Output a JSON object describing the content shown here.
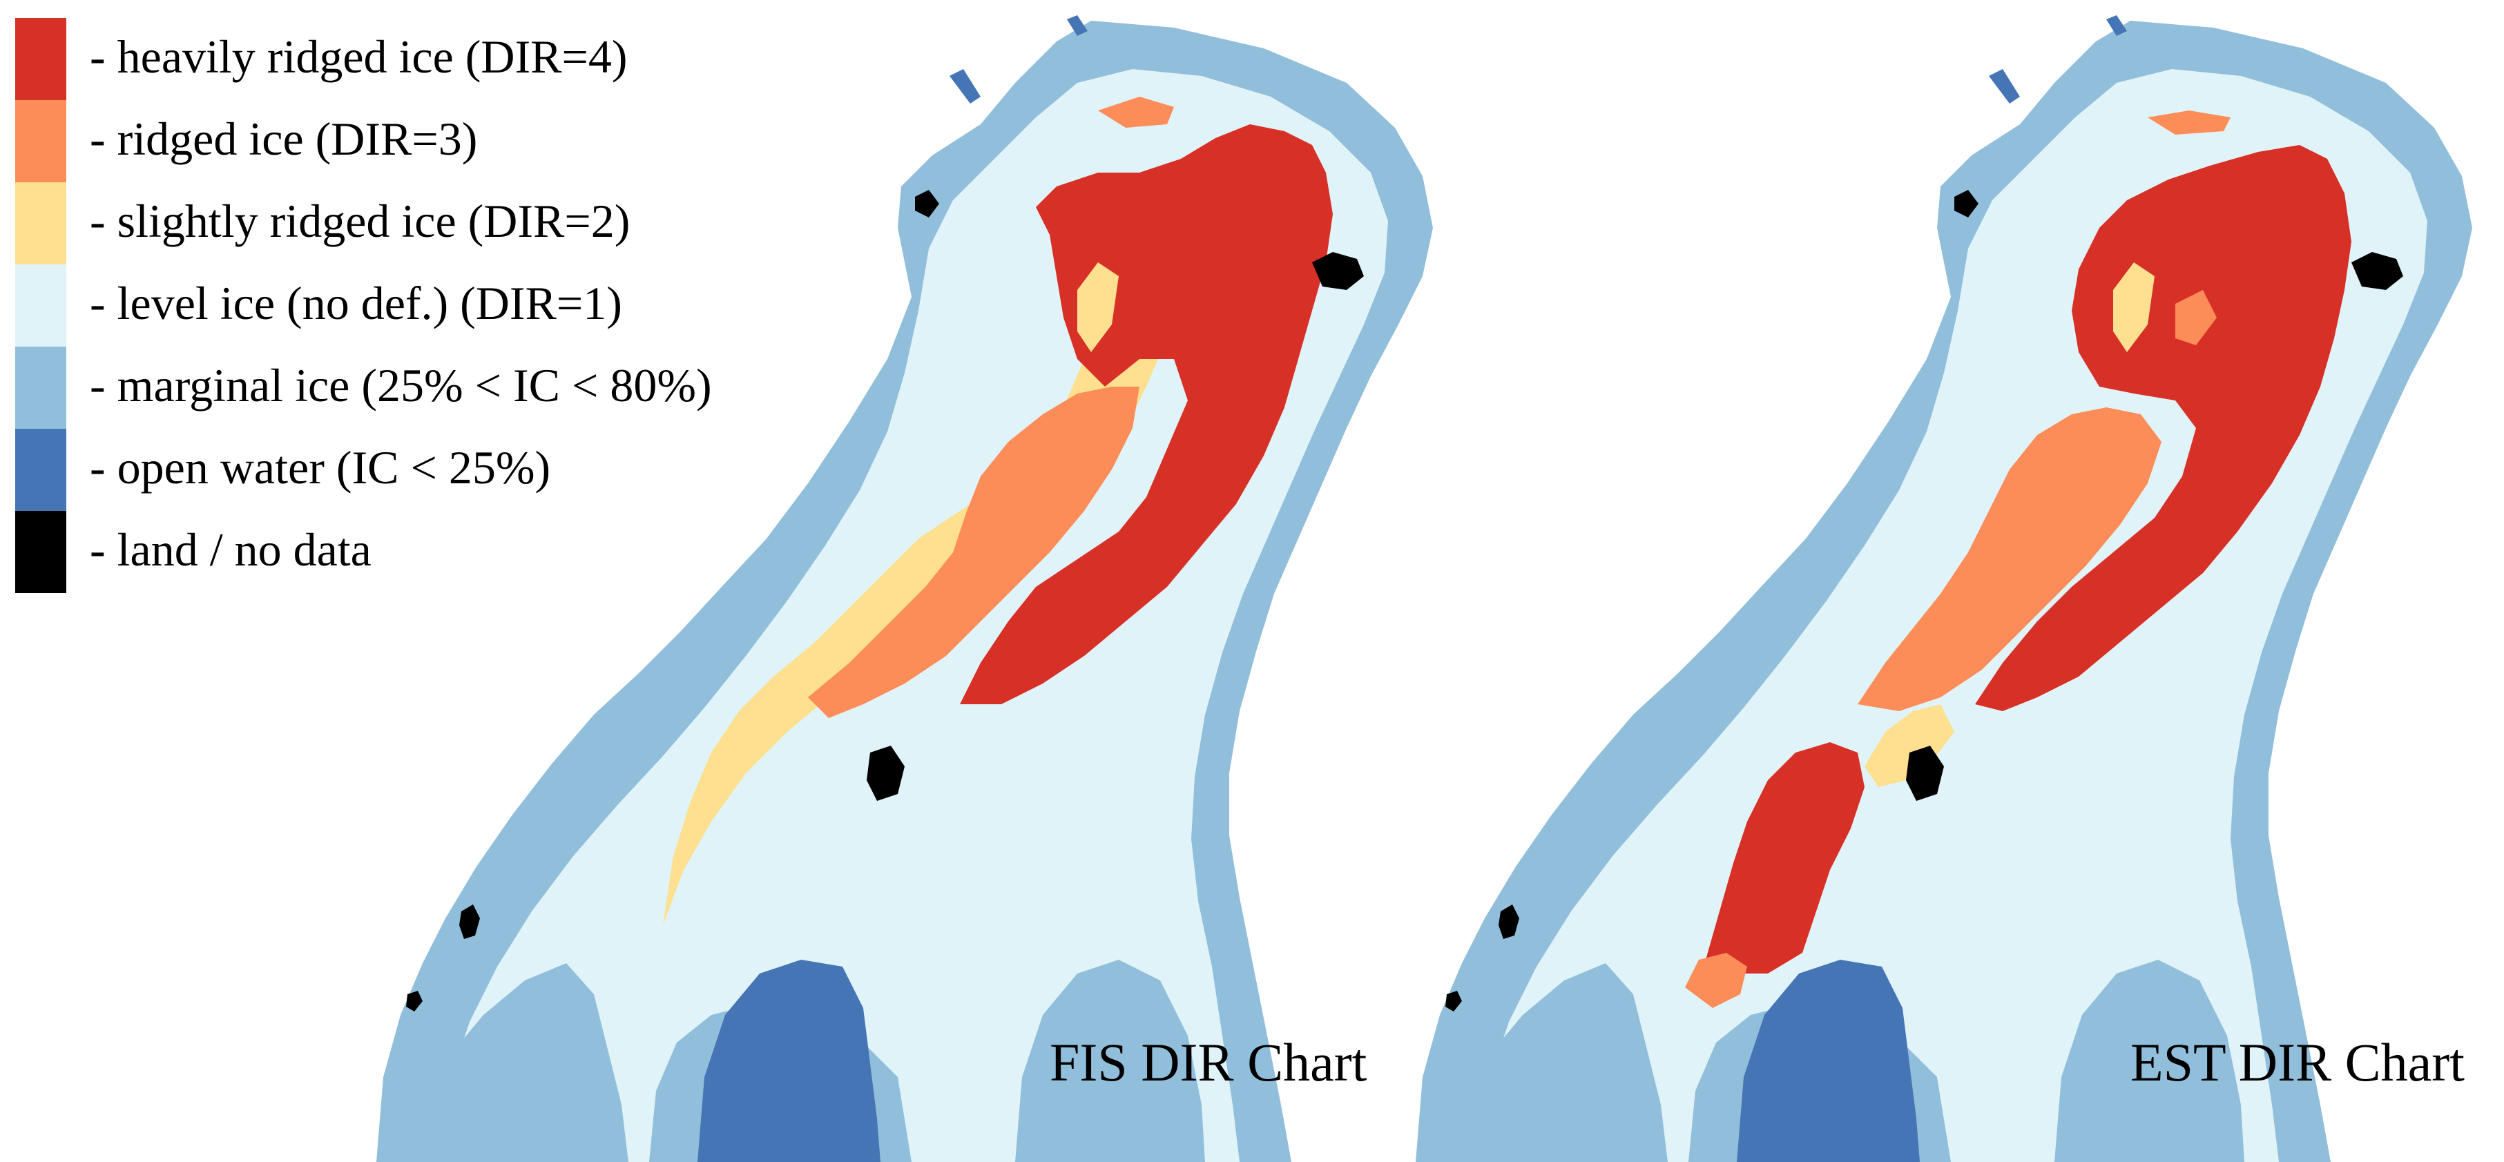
{
  "legend": {
    "items": [
      {
        "label": "- heavily ridged ice (DIR=4)",
        "color": "#d73027",
        "class": "heavily-ridged"
      },
      {
        "label": "- ridged ice (DIR=3)",
        "color": "#fc8d59",
        "class": "ridged"
      },
      {
        "label": "- slightly ridged ice (DIR=2)",
        "color": "#fee090",
        "class": "slightly-ridged"
      },
      {
        "label": "- level ice (no def.) (DIR=1)",
        "color": "#e0f3f8",
        "class": "level"
      },
      {
        "label": "- marginal ice (25% < IC < 80%)",
        "color": "#91bfdb",
        "class": "marginal"
      },
      {
        "label": "- open water (IC < 25%)",
        "color": "#4575b4",
        "class": "open-water"
      },
      {
        "label": "- land / no data",
        "color": "#000000",
        "class": "land"
      }
    ]
  },
  "maps": [
    {
      "id": "fis",
      "caption": "FIS DIR Chart"
    },
    {
      "id": "est",
      "caption": "EST DIR Chart"
    }
  ]
}
